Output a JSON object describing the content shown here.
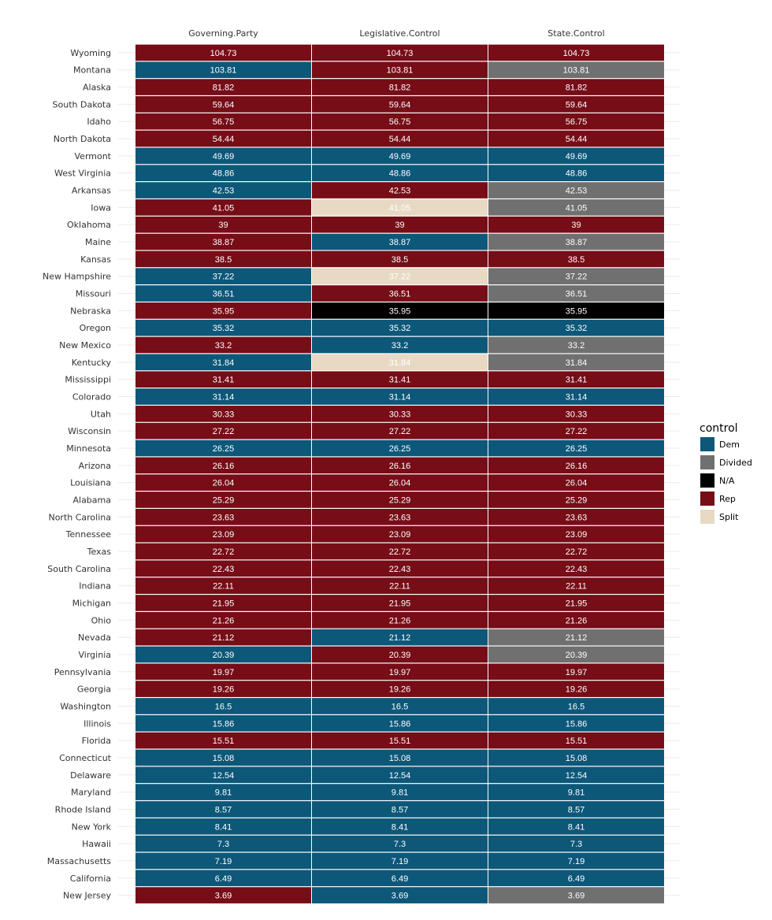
{
  "chart_data": {
    "type": "heatmap",
    "columns": [
      "Governing.Party",
      "Legislative.Control",
      "State.Control"
    ],
    "legend": {
      "title": "control",
      "placement": "right",
      "items": [
        {
          "label": "Dem",
          "color": "#0d5779"
        },
        {
          "label": "Divided",
          "color": "#707070"
        },
        {
          "label": "N/A",
          "color": "#000000"
        },
        {
          "label": "Rep",
          "color": "#760d17"
        },
        {
          "label": "Split",
          "color": "#e8d9c4"
        }
      ]
    },
    "rows": [
      {
        "state": "Wyoming",
        "value": "104.73",
        "controls": [
          "Rep",
          "Rep",
          "Rep"
        ]
      },
      {
        "state": "Montana",
        "value": "103.81",
        "controls": [
          "Dem",
          "Rep",
          "Divided"
        ]
      },
      {
        "state": "Alaska",
        "value": "81.82",
        "controls": [
          "Rep",
          "Rep",
          "Rep"
        ]
      },
      {
        "state": "South Dakota",
        "value": "59.64",
        "controls": [
          "Rep",
          "Rep",
          "Rep"
        ]
      },
      {
        "state": "Idaho",
        "value": "56.75",
        "controls": [
          "Rep",
          "Rep",
          "Rep"
        ]
      },
      {
        "state": "North Dakota",
        "value": "54.44",
        "controls": [
          "Rep",
          "Rep",
          "Rep"
        ]
      },
      {
        "state": "Vermont",
        "value": "49.69",
        "controls": [
          "Dem",
          "Dem",
          "Dem"
        ]
      },
      {
        "state": "West Virginia",
        "value": "48.86",
        "controls": [
          "Dem",
          "Dem",
          "Dem"
        ]
      },
      {
        "state": "Arkansas",
        "value": "42.53",
        "controls": [
          "Dem",
          "Rep",
          "Divided"
        ]
      },
      {
        "state": "Iowa",
        "value": "41.05",
        "controls": [
          "Rep",
          "Split",
          "Divided"
        ]
      },
      {
        "state": "Oklahoma",
        "value": "39",
        "controls": [
          "Rep",
          "Rep",
          "Rep"
        ]
      },
      {
        "state": "Maine",
        "value": "38.87",
        "controls": [
          "Rep",
          "Dem",
          "Divided"
        ]
      },
      {
        "state": "Kansas",
        "value": "38.5",
        "controls": [
          "Rep",
          "Rep",
          "Rep"
        ]
      },
      {
        "state": "New Hampshire",
        "value": "37.22",
        "controls": [
          "Dem",
          "Split",
          "Divided"
        ]
      },
      {
        "state": "Missouri",
        "value": "36.51",
        "controls": [
          "Dem",
          "Rep",
          "Divided"
        ]
      },
      {
        "state": "Nebraska",
        "value": "35.95",
        "controls": [
          "Rep",
          "N/A",
          "N/A"
        ]
      },
      {
        "state": "Oregon",
        "value": "35.32",
        "controls": [
          "Dem",
          "Dem",
          "Dem"
        ]
      },
      {
        "state": "New Mexico",
        "value": "33.2",
        "controls": [
          "Rep",
          "Dem",
          "Divided"
        ]
      },
      {
        "state": "Kentucky",
        "value": "31.84",
        "controls": [
          "Dem",
          "Split",
          "Divided"
        ]
      },
      {
        "state": "Mississippi",
        "value": "31.41",
        "controls": [
          "Rep",
          "Rep",
          "Rep"
        ]
      },
      {
        "state": "Colorado",
        "value": "31.14",
        "controls": [
          "Dem",
          "Dem",
          "Dem"
        ]
      },
      {
        "state": "Utah",
        "value": "30.33",
        "controls": [
          "Rep",
          "Rep",
          "Rep"
        ]
      },
      {
        "state": "Wisconsin",
        "value": "27.22",
        "controls": [
          "Rep",
          "Rep",
          "Rep"
        ]
      },
      {
        "state": "Minnesota",
        "value": "26.25",
        "controls": [
          "Dem",
          "Dem",
          "Dem"
        ]
      },
      {
        "state": "Arizona",
        "value": "26.16",
        "controls": [
          "Rep",
          "Rep",
          "Rep"
        ]
      },
      {
        "state": "Louisiana",
        "value": "26.04",
        "controls": [
          "Rep",
          "Rep",
          "Rep"
        ]
      },
      {
        "state": "Alabama",
        "value": "25.29",
        "controls": [
          "Rep",
          "Rep",
          "Rep"
        ]
      },
      {
        "state": "North Carolina",
        "value": "23.63",
        "controls": [
          "Rep",
          "Rep",
          "Rep"
        ]
      },
      {
        "state": "Tennessee",
        "value": "23.09",
        "controls": [
          "Rep",
          "Rep",
          "Rep"
        ]
      },
      {
        "state": "Texas",
        "value": "22.72",
        "controls": [
          "Rep",
          "Rep",
          "Rep"
        ]
      },
      {
        "state": "South Carolina",
        "value": "22.43",
        "controls": [
          "Rep",
          "Rep",
          "Rep"
        ]
      },
      {
        "state": "Indiana",
        "value": "22.11",
        "controls": [
          "Rep",
          "Rep",
          "Rep"
        ]
      },
      {
        "state": "Michigan",
        "value": "21.95",
        "controls": [
          "Rep",
          "Rep",
          "Rep"
        ]
      },
      {
        "state": "Ohio",
        "value": "21.26",
        "controls": [
          "Rep",
          "Rep",
          "Rep"
        ]
      },
      {
        "state": "Nevada",
        "value": "21.12",
        "controls": [
          "Rep",
          "Dem",
          "Divided"
        ]
      },
      {
        "state": "Virginia",
        "value": "20.39",
        "controls": [
          "Dem",
          "Rep",
          "Divided"
        ]
      },
      {
        "state": "Pennsylvania",
        "value": "19.97",
        "controls": [
          "Rep",
          "Rep",
          "Rep"
        ]
      },
      {
        "state": "Georgia",
        "value": "19.26",
        "controls": [
          "Rep",
          "Rep",
          "Rep"
        ]
      },
      {
        "state": "Washington",
        "value": "16.5",
        "controls": [
          "Dem",
          "Dem",
          "Dem"
        ]
      },
      {
        "state": "Illinois",
        "value": "15.86",
        "controls": [
          "Dem",
          "Dem",
          "Dem"
        ]
      },
      {
        "state": "Florida",
        "value": "15.51",
        "controls": [
          "Rep",
          "Rep",
          "Rep"
        ]
      },
      {
        "state": "Connecticut",
        "value": "15.08",
        "controls": [
          "Dem",
          "Dem",
          "Dem"
        ]
      },
      {
        "state": "Delaware",
        "value": "12.54",
        "controls": [
          "Dem",
          "Dem",
          "Dem"
        ]
      },
      {
        "state": "Maryland",
        "value": "9.81",
        "controls": [
          "Dem",
          "Dem",
          "Dem"
        ]
      },
      {
        "state": "Rhode Island",
        "value": "8.57",
        "controls": [
          "Dem",
          "Dem",
          "Dem"
        ]
      },
      {
        "state": "New York",
        "value": "8.41",
        "controls": [
          "Dem",
          "Dem",
          "Dem"
        ]
      },
      {
        "state": "Hawaii",
        "value": "7.3",
        "controls": [
          "Dem",
          "Dem",
          "Dem"
        ]
      },
      {
        "state": "Massachusetts",
        "value": "7.19",
        "controls": [
          "Dem",
          "Dem",
          "Dem"
        ]
      },
      {
        "state": "California",
        "value": "6.49",
        "controls": [
          "Dem",
          "Dem",
          "Dem"
        ]
      },
      {
        "state": "New Jersey",
        "value": "3.69",
        "controls": [
          "Rep",
          "Dem",
          "Divided"
        ]
      }
    ]
  }
}
